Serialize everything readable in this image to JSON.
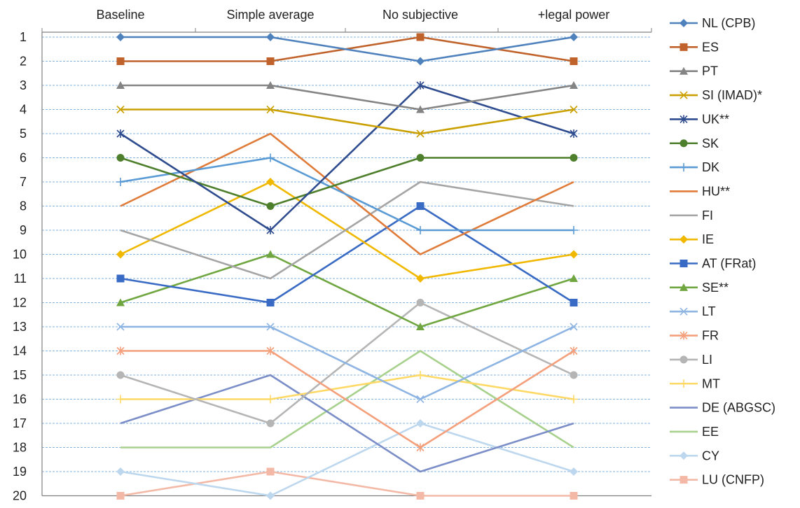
{
  "chart_data": {
    "type": "line",
    "categories": [
      "Baseline",
      "Simple average",
      "No subjective",
      "+legal power"
    ],
    "y_axis": {
      "ticks": [
        1,
        2,
        3,
        4,
        5,
        6,
        7,
        8,
        9,
        10,
        11,
        12,
        13,
        14,
        15,
        16,
        17,
        18,
        19,
        20
      ],
      "range": [
        1,
        20
      ],
      "reversed": true
    },
    "grid": true,
    "legend_position": "right",
    "series": [
      {
        "name": "NL (CPB)",
        "values": [
          1,
          1,
          2,
          1
        ],
        "color": "#4F81BD",
        "marker": "diamond"
      },
      {
        "name": "ES",
        "values": [
          2,
          2,
          1,
          2
        ],
        "color": "#C0622B",
        "marker": "square"
      },
      {
        "name": "PT",
        "values": [
          3,
          3,
          4,
          3
        ],
        "color": "#848484",
        "marker": "triangle"
      },
      {
        "name": "SI (IMAD)*",
        "values": [
          4,
          4,
          5,
          4
        ],
        "color": "#C9A000",
        "marker": "x"
      },
      {
        "name": "UK**",
        "values": [
          5,
          9,
          3,
          5
        ],
        "color": "#2F4C8F",
        "marker": "star"
      },
      {
        "name": "SK",
        "values": [
          6,
          8,
          6,
          6
        ],
        "color": "#4E7F2C",
        "marker": "circle"
      },
      {
        "name": "DK",
        "values": [
          7,
          6,
          9,
          9
        ],
        "color": "#5B9BD5",
        "marker": "plus"
      },
      {
        "name": "HU**",
        "values": [
          8,
          5,
          10,
          7
        ],
        "color": "#E07B39",
        "marker": "none"
      },
      {
        "name": "FI",
        "values": [
          9,
          11,
          7,
          8
        ],
        "color": "#A5A5A5",
        "marker": "none"
      },
      {
        "name": "IE",
        "values": [
          10,
          7,
          11,
          10
        ],
        "color": "#F0B800",
        "marker": "diamond"
      },
      {
        "name": "AT (FRat)",
        "values": [
          11,
          12,
          8,
          12
        ],
        "color": "#3A6BC4",
        "marker": "square"
      },
      {
        "name": "SE**",
        "values": [
          12,
          10,
          13,
          11
        ],
        "color": "#6FA640",
        "marker": "triangle"
      },
      {
        "name": "LT",
        "values": [
          13,
          13,
          16,
          13
        ],
        "color": "#8DB4E2",
        "marker": "x"
      },
      {
        "name": "FR",
        "values": [
          14,
          14,
          18,
          14
        ],
        "color": "#F4A07C",
        "marker": "star"
      },
      {
        "name": "LI",
        "values": [
          15,
          17,
          12,
          15
        ],
        "color": "#B5B5B5",
        "marker": "circle"
      },
      {
        "name": "MT",
        "values": [
          16,
          16,
          15,
          16
        ],
        "color": "#FFD966",
        "marker": "plus"
      },
      {
        "name": "DE (ABGSC)",
        "values": [
          17,
          15,
          19,
          17
        ],
        "color": "#7B8EC8",
        "marker": "none"
      },
      {
        "name": "EE",
        "values": [
          18,
          18,
          14,
          18
        ],
        "color": "#A9D18E",
        "marker": "none"
      },
      {
        "name": "CY",
        "values": [
          19,
          20,
          17,
          19
        ],
        "color": "#BDD7EE",
        "marker": "diamond"
      },
      {
        "name": "LU (CNFP)",
        "values": [
          20,
          19,
          20,
          20
        ],
        "color": "#F4B9A6",
        "marker": "square"
      }
    ]
  }
}
